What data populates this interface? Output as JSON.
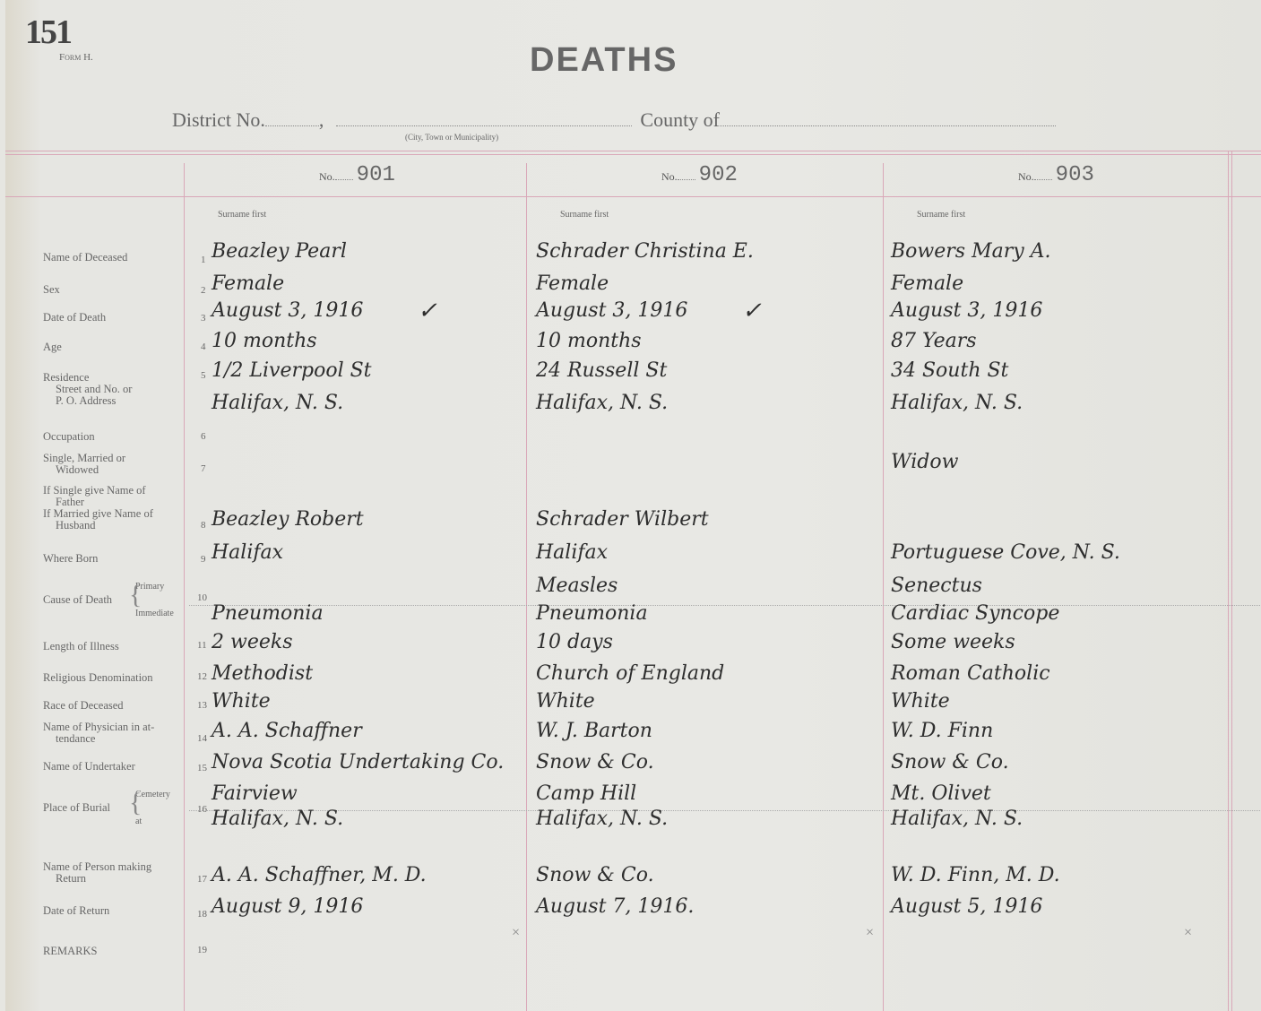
{
  "header": {
    "page_number": "151",
    "form": "Form H.",
    "title": "DEATHS",
    "district_label": "District No.",
    "city_caption": "(City, Town or Municipality)",
    "county_label": "County of"
  },
  "columns": [
    {
      "no_label": "No.",
      "number": "901",
      "surname_note": "Surname first"
    },
    {
      "no_label": "No.",
      "number": "902",
      "surname_note": "Surname first"
    },
    {
      "no_label": "No.",
      "number": "903",
      "surname_note": "Surname first"
    }
  ],
  "fields": [
    {
      "n": "1",
      "label": "Name of Deceased"
    },
    {
      "n": "2",
      "label": "Sex"
    },
    {
      "n": "3",
      "label": "Date of Death"
    },
    {
      "n": "4",
      "label": "Age"
    },
    {
      "n": "5",
      "label": "Residence\nStreet and No. or\nP. O. Address"
    },
    {
      "n": "6",
      "label": "Occupation"
    },
    {
      "n": "7",
      "label": "Single, Married or\nWidowed"
    },
    {
      "n": "8",
      "label": "If Single give Name of\nFather\nIf Married give Name of\nHusband"
    },
    {
      "n": "9",
      "label": "Where Born"
    },
    {
      "n": "10",
      "label": "Cause of Death",
      "sub": [
        "Primary",
        "Immediate"
      ]
    },
    {
      "n": "11",
      "label": "Length of Illness"
    },
    {
      "n": "12",
      "label": "Religious Denomination"
    },
    {
      "n": "13",
      "label": "Race of Deceased"
    },
    {
      "n": "14",
      "label": "Name of Physician in at-\ntendance"
    },
    {
      "n": "15",
      "label": "Name of Undertaker"
    },
    {
      "n": "16",
      "label": "Place of Burial",
      "sub": [
        "Cemetery",
        "at"
      ]
    },
    {
      "n": "17",
      "label": "Name of Person making\nReturn"
    },
    {
      "n": "18",
      "label": "Date of Return"
    },
    {
      "n": "19",
      "label": "REMARKS"
    }
  ],
  "records": [
    {
      "name": "Beazley Pearl",
      "sex": "Female",
      "date_of_death": "August 3, 1916",
      "death_check": "✓",
      "age": "10 months",
      "residence": "1/2 Liverpool St",
      "residence_city": "Halifax, N. S.",
      "occupation": "",
      "marital": "",
      "father_husband": "Beazley Robert",
      "born": "Halifax",
      "cause_primary": "",
      "cause_immediate": "Pneumonia",
      "illness": "2 weeks",
      "religion": "Methodist",
      "race": "White",
      "physician": "A. A. Schaffner",
      "undertaker": "Nova Scotia Undertaking Co.",
      "cemetery": "Fairview",
      "burial_at": "Halifax, N. S.",
      "returner": "A. A. Schaffner, M. D.",
      "return_date": "August 9, 1916",
      "remark_mark": "×"
    },
    {
      "name": "Schrader Christina E.",
      "sex": "Female",
      "date_of_death": "August 3, 1916",
      "death_check": "✓",
      "age": "10 months",
      "residence": "24 Russell St",
      "residence_city": "Halifax, N. S.",
      "occupation": "",
      "marital": "",
      "father_husband": "Schrader Wilbert",
      "born": "Halifax",
      "cause_primary": "Measles",
      "cause_immediate": "Pneumonia",
      "illness": "10 days",
      "religion": "Church of England",
      "race": "White",
      "physician": "W. J. Barton",
      "undertaker": "Snow & Co.",
      "cemetery": "Camp Hill",
      "burial_at": "Halifax, N. S.",
      "returner": "Snow & Co.",
      "return_date": "August 7, 1916.",
      "remark_mark": "×"
    },
    {
      "name": "Bowers Mary A.",
      "sex": "Female",
      "date_of_death": "August 3, 1916",
      "death_check": "",
      "age": "87 Years",
      "residence": "34 South St",
      "residence_city": "Halifax, N. S.",
      "occupation": "",
      "marital": "Widow",
      "father_husband": "",
      "born": "Portuguese Cove, N. S.",
      "cause_primary": "Senectus",
      "cause_immediate": "Cardiac Syncope",
      "illness": "Some weeks",
      "religion": "Roman Catholic",
      "race": "White",
      "physician": "W. D. Finn",
      "undertaker": "Snow & Co.",
      "cemetery": "Mt. Olivet",
      "burial_at": "Halifax, N. S.",
      "returner": "W. D. Finn, M. D.",
      "return_date": "August 5, 1916",
      "remark_mark": "×"
    }
  ]
}
